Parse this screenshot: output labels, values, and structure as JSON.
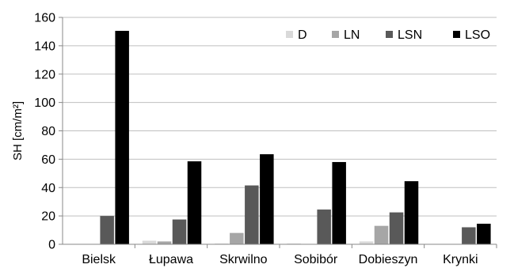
{
  "chart_data": {
    "type": "bar",
    "categories": [
      "Bielsk",
      "Łupawa",
      "Skrwilno",
      "Sobibór",
      "Dobieszyn",
      "Krynki"
    ],
    "series": [
      {
        "name": "D",
        "color": "#d9d9d9",
        "values": [
          0,
          2.5,
          0.5,
          0.5,
          2,
          0
        ]
      },
      {
        "name": "LN",
        "color": "#a6a6a6",
        "values": [
          0,
          2,
          8,
          0,
          13,
          0
        ]
      },
      {
        "name": "LSN",
        "color": "#595959",
        "values": [
          20,
          17.5,
          41.5,
          24.5,
          22.5,
          12
        ]
      },
      {
        "name": "LSO",
        "color": "#000000",
        "values": [
          150.5,
          58.5,
          63.5,
          58,
          44.5,
          14.5
        ]
      }
    ],
    "ylabel": "SH [cm/m²]",
    "ylim": [
      0,
      160
    ],
    "yticks": [
      "0",
      "20",
      "40",
      "60",
      "80",
      "100",
      "120",
      "140",
      "160"
    ],
    "grid": "horizontal",
    "legend": "top-right"
  }
}
